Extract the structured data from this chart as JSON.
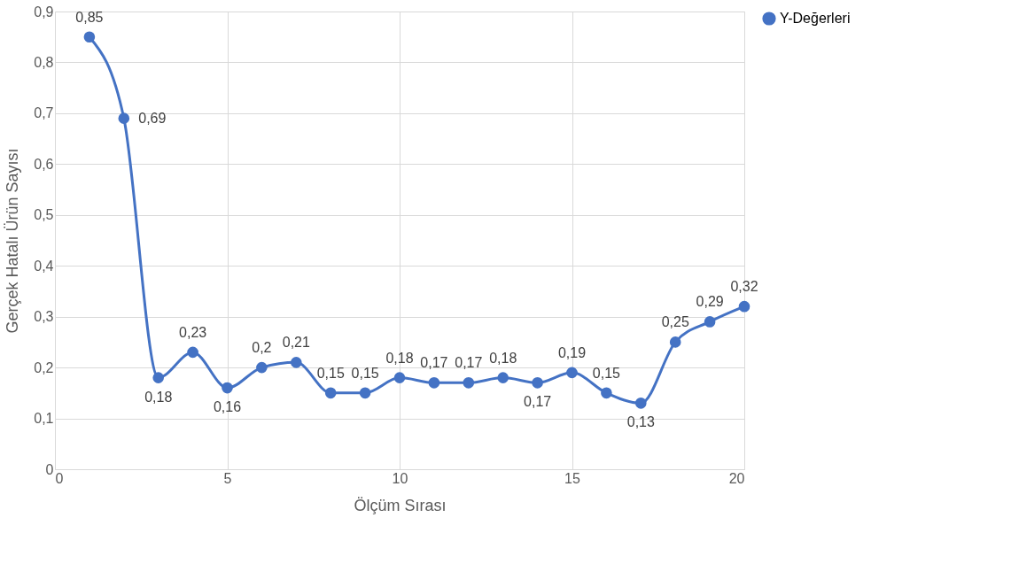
{
  "chart_data": {
    "type": "line",
    "xlabel": "Ölçüm Sırası",
    "ylabel": "Gerçek Hatalı Ürün Sayısı",
    "x": [
      1,
      2,
      3,
      4,
      5,
      6,
      7,
      8,
      9,
      10,
      11,
      12,
      13,
      14,
      15,
      16,
      17,
      18,
      19,
      20
    ],
    "series": [
      {
        "name": "Y-Değerleri",
        "color": "#4472c4",
        "values": [
          0.85,
          0.69,
          0.18,
          0.23,
          0.16,
          0.2,
          0.21,
          0.15,
          0.15,
          0.18,
          0.17,
          0.17,
          0.18,
          0.17,
          0.19,
          0.15,
          0.13,
          0.25,
          0.29,
          0.32
        ],
        "value_labels": [
          "0,85",
          "0,69",
          "0,18",
          "0,23",
          "0,16",
          "0,2",
          "0,21",
          "0,15",
          "0,15",
          "0,18",
          "0,17",
          "0,17",
          "0,18",
          "0,17",
          "0,19",
          "0,15",
          "0,13",
          "0,25",
          "0,29",
          "0,32"
        ]
      }
    ],
    "xlim": [
      0,
      20
    ],
    "xticks": [
      0,
      5,
      10,
      15,
      20
    ],
    "ylim": [
      0,
      0.9
    ],
    "yticks": [
      0,
      {
        "value": 0.1,
        "label": "0,1"
      },
      {
        "value": 0.2,
        "label": "0,2"
      },
      {
        "value": 0.3,
        "label": "0,3"
      },
      {
        "value": 0.4,
        "label": "0,4"
      },
      {
        "value": 0.5,
        "label": "0,5"
      },
      {
        "value": 0.6,
        "label": "0,6"
      },
      {
        "value": 0.7,
        "label": "0,7"
      },
      {
        "value": 0.8,
        "label": "0,8"
      },
      {
        "value": 0.9,
        "label": "0,9"
      }
    ],
    "grid": true,
    "legend": "right",
    "marker": "circle",
    "line_style": "solid"
  }
}
